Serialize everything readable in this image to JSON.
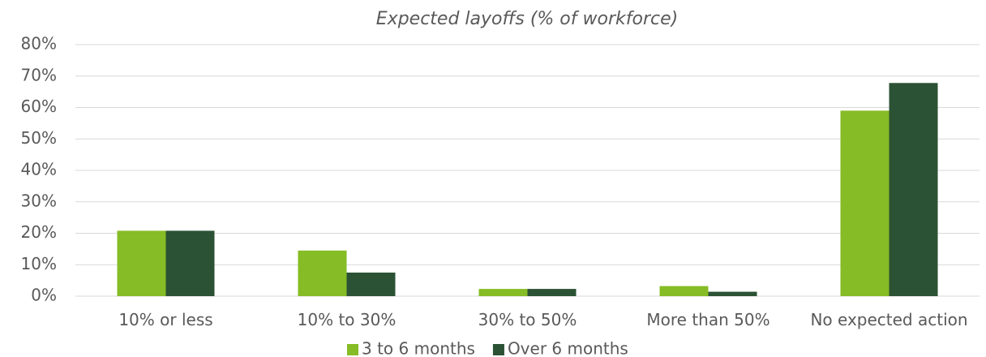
{
  "chart_data": {
    "type": "bar",
    "title": "Expected layoffs (% of workforce)",
    "categories": [
      "10% or less",
      "10% to 30%",
      "30% to 50%",
      "More than 50%",
      "No expected action"
    ],
    "series": [
      {
        "name": "3 to 6 months",
        "color": "#86bc25",
        "values": [
          20.8,
          14.5,
          2.3,
          3.2,
          59
        ]
      },
      {
        "name": "Over 6 months",
        "color": "#2b5234",
        "values": [
          20.8,
          7.5,
          2.3,
          1.4,
          67.8
        ]
      }
    ],
    "ylim": [
      0,
      80
    ],
    "yticks": [
      {
        "value": 0,
        "label": "0%"
      },
      {
        "value": 10,
        "label": "10%"
      },
      {
        "value": 20,
        "label": "20%"
      },
      {
        "value": 30,
        "label": "30%"
      },
      {
        "value": 40,
        "label": "40%"
      },
      {
        "value": 50,
        "label": "50%"
      },
      {
        "value": 60,
        "label": "60%"
      },
      {
        "value": 70,
        "label": "70%"
      },
      {
        "value": 80,
        "label": "80%"
      }
    ],
    "grid": true,
    "legend": "bottom"
  }
}
